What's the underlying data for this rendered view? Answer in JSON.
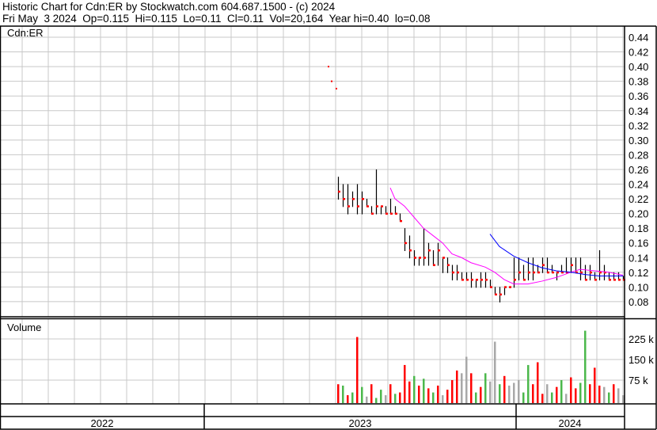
{
  "header": {
    "line1": "Historic Chart for Cdn:ER by Stockwatch.com 604.687.1500 - (c) 2024",
    "line2": "Fri May  3 2024  Op=0.115  Hi=0.115  Lo=0.11  Cl=0.11  Vol=20,164  Year hi=0.40  lo=0.08"
  },
  "chart_data": {
    "type": "ohlc",
    "symbol_label": "Cdn:ER",
    "volume_label": "Volume",
    "price_ticks": [
      "0.08",
      "0.10",
      "0.12",
      "0.14",
      "0.16",
      "0.18",
      "0.20",
      "0.22",
      "0.24",
      "0.26",
      "0.28",
      "0.30",
      "0.32",
      "0.34",
      "0.36",
      "0.38",
      "0.40",
      "0.42",
      "0.44"
    ],
    "price_range": [
      0.08,
      0.44
    ],
    "volume_ticks": [
      {
        "v": 75,
        "label": "75 k"
      },
      {
        "v": 150,
        "label": "150 k"
      },
      {
        "v": 225,
        "label": "225 k"
      }
    ],
    "years": [
      "2022",
      "2023",
      "2024"
    ],
    "colors": {
      "bar": "#000000",
      "close": "#ff0000",
      "ma_short": "#ff00ff",
      "ma_long": "#0000ff",
      "vol_up": "#4cb84c",
      "vol_down": "#ff0000",
      "vol_flat": "#a8a8a8",
      "grid": "#c8c8c8"
    },
    "early_closes": [
      0.4,
      0.38,
      0.37
    ],
    "bars": [
      [
        0.25,
        0.22,
        0.23
      ],
      [
        0.24,
        0.21,
        0.22
      ],
      [
        0.24,
        0.2,
        0.21
      ],
      [
        0.23,
        0.21,
        0.22
      ],
      [
        0.24,
        0.2,
        0.21
      ],
      [
        0.23,
        0.2,
        0.22
      ],
      [
        0.22,
        0.21,
        0.21
      ],
      [
        0.21,
        0.2,
        0.2
      ],
      [
        0.26,
        0.2,
        0.21
      ],
      [
        0.21,
        0.2,
        0.21
      ],
      [
        0.21,
        0.2,
        0.2
      ],
      [
        0.22,
        0.2,
        0.2
      ],
      [
        0.21,
        0.2,
        0.2
      ],
      [
        0.2,
        0.19,
        0.19
      ],
      [
        0.18,
        0.15,
        0.16
      ],
      [
        0.17,
        0.14,
        0.15
      ],
      [
        0.15,
        0.13,
        0.14
      ],
      [
        0.14,
        0.13,
        0.14
      ],
      [
        0.18,
        0.13,
        0.14
      ],
      [
        0.16,
        0.13,
        0.15
      ],
      [
        0.15,
        0.13,
        0.13
      ],
      [
        0.16,
        0.13,
        0.15
      ],
      [
        0.14,
        0.12,
        0.14
      ],
      [
        0.14,
        0.12,
        0.13
      ],
      [
        0.13,
        0.11,
        0.12
      ],
      [
        0.13,
        0.11,
        0.12
      ],
      [
        0.12,
        0.11,
        0.11
      ],
      [
        0.12,
        0.11,
        0.11
      ],
      [
        0.12,
        0.1,
        0.11
      ],
      [
        0.11,
        0.1,
        0.11
      ],
      [
        0.12,
        0.1,
        0.11
      ],
      [
        0.12,
        0.1,
        0.11
      ],
      [
        0.11,
        0.1,
        0.1
      ],
      [
        0.1,
        0.09,
        0.09
      ],
      [
        0.1,
        0.08,
        0.09
      ],
      [
        0.1,
        0.09,
        0.1
      ],
      [
        0.1,
        0.1,
        0.1
      ],
      [
        0.14,
        0.1,
        0.11
      ],
      [
        0.14,
        0.11,
        0.12
      ],
      [
        0.13,
        0.11,
        0.11
      ],
      [
        0.14,
        0.11,
        0.12
      ],
      [
        0.14,
        0.11,
        0.12
      ],
      [
        0.13,
        0.12,
        0.12
      ],
      [
        0.14,
        0.12,
        0.13
      ],
      [
        0.14,
        0.12,
        0.12
      ],
      [
        0.13,
        0.12,
        0.12
      ],
      [
        0.12,
        0.11,
        0.12
      ],
      [
        0.13,
        0.12,
        0.12
      ],
      [
        0.14,
        0.12,
        0.12
      ],
      [
        0.14,
        0.12,
        0.13
      ],
      [
        0.14,
        0.12,
        0.12
      ],
      [
        0.14,
        0.11,
        0.12
      ],
      [
        0.13,
        0.11,
        0.11
      ],
      [
        0.13,
        0.11,
        0.12
      ],
      [
        0.12,
        0.11,
        0.11
      ],
      [
        0.15,
        0.11,
        0.12
      ],
      [
        0.13,
        0.11,
        0.12
      ],
      [
        0.12,
        0.11,
        0.11
      ],
      [
        0.12,
        0.11,
        0.11
      ],
      [
        0.12,
        0.11,
        0.11
      ],
      [
        0.115,
        0.11,
        0.11
      ]
    ],
    "volume": [
      [
        60,
        "d"
      ],
      [
        55,
        "u"
      ],
      [
        20,
        "d"
      ],
      [
        30,
        "u"
      ],
      [
        232,
        "d"
      ],
      [
        50,
        "u"
      ],
      [
        15,
        "f"
      ],
      [
        60,
        "d"
      ],
      [
        10,
        "u"
      ],
      [
        40,
        "u"
      ],
      [
        20,
        "f"
      ],
      [
        60,
        "d"
      ],
      [
        25,
        "u"
      ],
      [
        30,
        "d"
      ],
      [
        130,
        "d"
      ],
      [
        70,
        "d"
      ],
      [
        90,
        "u"
      ],
      [
        55,
        "d"
      ],
      [
        80,
        "u"
      ],
      [
        45,
        "d"
      ],
      [
        30,
        "u"
      ],
      [
        55,
        "d"
      ],
      [
        20,
        "f"
      ],
      [
        40,
        "d"
      ],
      [
        75,
        "d"
      ],
      [
        110,
        "d"
      ],
      [
        100,
        "f"
      ],
      [
        160,
        "f"
      ],
      [
        100,
        "d"
      ],
      [
        30,
        "u"
      ],
      [
        50,
        "d"
      ],
      [
        100,
        "u"
      ],
      [
        70,
        "f"
      ],
      [
        215,
        "f"
      ],
      [
        60,
        "u"
      ],
      [
        90,
        "d"
      ],
      [
        55,
        "f"
      ],
      [
        65,
        "f"
      ],
      [
        75,
        "f"
      ],
      [
        30,
        "u"
      ],
      [
        130,
        "u"
      ],
      [
        60,
        "d"
      ],
      [
        140,
        "d"
      ],
      [
        25,
        "d"
      ],
      [
        60,
        "f"
      ],
      [
        30,
        "u"
      ],
      [
        50,
        "d"
      ],
      [
        75,
        "u"
      ],
      [
        25,
        "f"
      ],
      [
        85,
        "d"
      ],
      [
        45,
        "d"
      ],
      [
        65,
        "u"
      ],
      [
        255,
        "u"
      ],
      [
        60,
        "d"
      ],
      [
        120,
        "d"
      ],
      [
        55,
        "d"
      ],
      [
        50,
        "f"
      ],
      [
        30,
        "u"
      ],
      [
        60,
        "d"
      ],
      [
        45,
        "f"
      ],
      [
        20,
        "f"
      ]
    ],
    "ma_short": [
      [
        11,
        0.235
      ],
      [
        12,
        0.22
      ],
      [
        14,
        0.21
      ],
      [
        16,
        0.195
      ],
      [
        18,
        0.18
      ],
      [
        20,
        0.17
      ],
      [
        22,
        0.16
      ],
      [
        24,
        0.145
      ],
      [
        26,
        0.14
      ],
      [
        28,
        0.133
      ],
      [
        31,
        0.127
      ],
      [
        33,
        0.12
      ],
      [
        35,
        0.11
      ],
      [
        37,
        0.104
      ],
      [
        40,
        0.104
      ],
      [
        43,
        0.108
      ],
      [
        46,
        0.113
      ],
      [
        49,
        0.12
      ],
      [
        51,
        0.124
      ],
      [
        54,
        0.122
      ],
      [
        57,
        0.12
      ],
      [
        60,
        0.116
      ]
    ],
    "ma_long": [
      [
        32,
        0.172
      ],
      [
        34,
        0.155
      ],
      [
        37,
        0.142
      ],
      [
        40,
        0.133
      ],
      [
        43,
        0.126
      ],
      [
        46,
        0.122
      ],
      [
        49,
        0.12
      ],
      [
        52,
        0.117
      ],
      [
        55,
        0.115
      ],
      [
        60,
        0.115
      ]
    ]
  }
}
